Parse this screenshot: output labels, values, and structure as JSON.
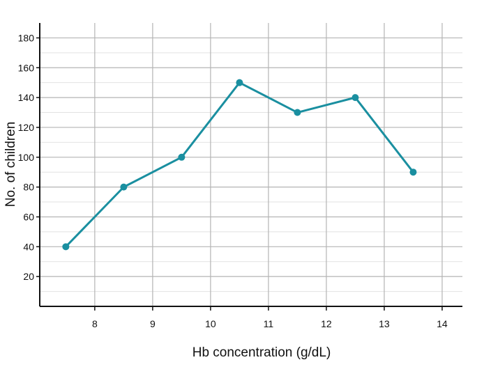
{
  "chart_data": {
    "type": "line",
    "title": "",
    "xlabel": "Hb concentration (g/dL)",
    "ylabel": "No. of children",
    "xlim": [
      7.05,
      14.35
    ],
    "ylim": [
      0,
      190
    ],
    "x_ticks": [
      8,
      9,
      10,
      11,
      12,
      13,
      14
    ],
    "y_ticks": [
      20,
      40,
      60,
      80,
      100,
      120,
      140,
      160,
      180
    ],
    "grid": true,
    "legend": "none",
    "series": [
      {
        "color": "#1a8fa0",
        "x": [
          7.5,
          8.5,
          9.5,
          10.5,
          11.5,
          12.5,
          13.5
        ],
        "y": [
          40,
          80,
          100,
          150,
          130,
          140,
          90
        ]
      }
    ]
  }
}
